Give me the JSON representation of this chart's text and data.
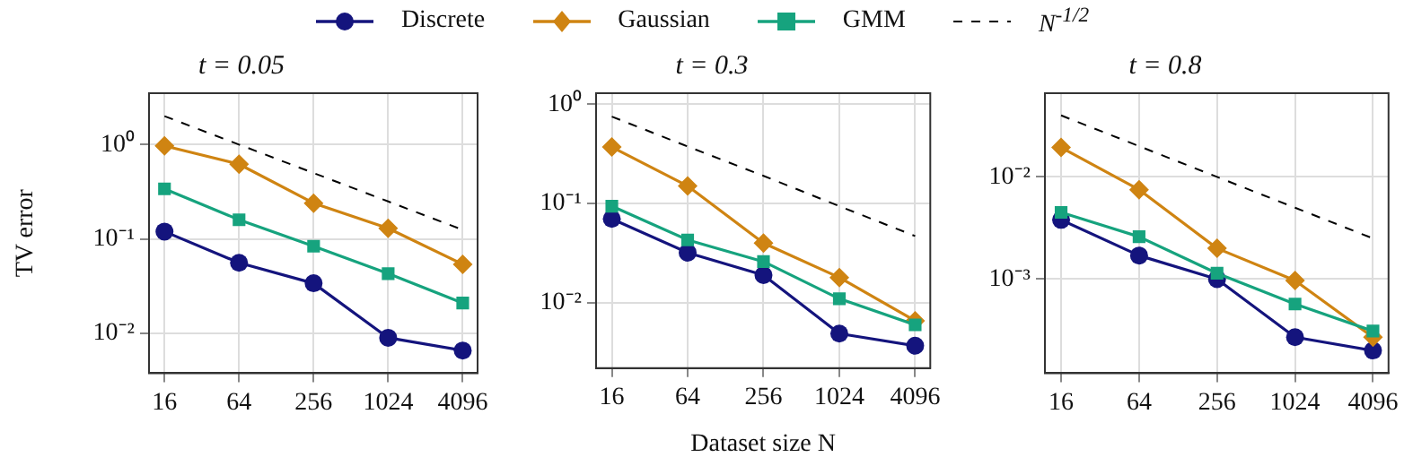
{
  "chart_data": [
    {
      "type": "line",
      "title": "t = 0.05",
      "ylabel": "TV error",
      "x": [
        16,
        64,
        256,
        1024,
        4096
      ],
      "log": "xy",
      "grid": true,
      "legend": "top",
      "line_style": "solid",
      "xlim": [
        12,
        5400
      ],
      "xticks": [
        16,
        64,
        256,
        1024,
        4096
      ],
      "ylim": [
        0.0038,
        3.5
      ],
      "yticks": [
        {
          "value": 0.01,
          "label": "10⁻²"
        },
        {
          "value": 0.1,
          "label": "10⁻¹"
        },
        {
          "value": 1,
          "label": "10⁰"
        }
      ],
      "series": [
        {
          "name": "Discrete",
          "color": "#14147d",
          "marker": "circle",
          "values": [
            0.12,
            0.056,
            0.034,
            0.009,
            0.0066
          ]
        },
        {
          "name": "Gaussian",
          "color": "#cf8412",
          "marker": "diamond",
          "values": [
            0.97,
            0.62,
            0.24,
            0.13,
            0.054
          ]
        },
        {
          "name": "GMM",
          "color": "#16a37e",
          "marker": "square",
          "values": [
            0.34,
            0.16,
            0.084,
            0.043,
            0.021
          ]
        },
        {
          "name": "N$^{-1/2}$",
          "color": "#000000",
          "marker": "none",
          "line_style": "dashed",
          "values": [
            2,
            1,
            0.5,
            0.25,
            0.125
          ]
        }
      ]
    },
    {
      "type": "line",
      "title": "t = 0.3",
      "xlabel": "Dataset size N",
      "x": [
        16,
        64,
        256,
        1024,
        4096
      ],
      "log": "xy",
      "grid": true,
      "line_style": "solid",
      "xlim": [
        12,
        5400
      ],
      "xticks": [
        16,
        64,
        256,
        1024,
        4096
      ],
      "ylim": [
        0.0022,
        1.29
      ],
      "yticks": [
        {
          "value": 0.01,
          "label": "10⁻²"
        },
        {
          "value": 0.1,
          "label": "10⁻¹"
        },
        {
          "value": 1,
          "label": "10⁰"
        }
      ],
      "series": [
        {
          "color": "#14147d",
          "marker": "circle",
          "values": [
            0.07,
            0.032,
            0.019,
            0.0049,
            0.0037
          ]
        },
        {
          "color": "#cf8412",
          "marker": "diamond",
          "values": [
            0.37,
            0.15,
            0.04,
            0.018,
            0.0066
          ]
        },
        {
          "color": "#16a37e",
          "marker": "square",
          "values": [
            0.094,
            0.043,
            0.026,
            0.011,
            0.006
          ]
        },
        {
          "color": "#000000",
          "marker": "none",
          "line_style": "dashed",
          "values": [
            0.75,
            0.375,
            0.19,
            0.094,
            0.047
          ]
        }
      ]
    },
    {
      "type": "line",
      "title": "t = 0.8",
      "x": [
        16,
        64,
        256,
        1024,
        4096
      ],
      "log": "xy",
      "grid": true,
      "line_style": "solid",
      "xlim": [
        12,
        5400
      ],
      "xticks": [
        16,
        64,
        256,
        1024,
        4096
      ],
      "ylim": [
        0.00012,
        0.066
      ],
      "yticks": [
        {
          "value": 0.001,
          "label": "10⁻³"
        },
        {
          "value": 0.01,
          "label": "10⁻²"
        }
      ],
      "series": [
        {
          "color": "#14147d",
          "marker": "circle",
          "values": [
            0.0038,
            0.0017,
            0.001,
            0.00027,
            0.0002
          ]
        },
        {
          "color": "#cf8412",
          "marker": "diamond",
          "values": [
            0.0194,
            0.0075,
            0.002,
            0.00097,
            0.00027
          ]
        },
        {
          "color": "#16a37e",
          "marker": "square",
          "values": [
            0.0045,
            0.0026,
            0.00114,
            0.00057,
            0.00031
          ]
        },
        {
          "color": "#000000",
          "marker": "none",
          "line_style": "dashed",
          "values": [
            0.04,
            0.02,
            0.01,
            0.005,
            0.0025
          ]
        }
      ]
    }
  ]
}
